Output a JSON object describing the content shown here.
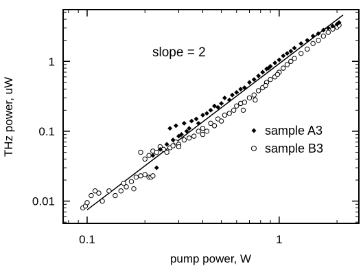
{
  "chart_data": {
    "type": "scatter",
    "xlabel": "pump power, W",
    "ylabel": "THz power, uW",
    "x_scale": "log",
    "y_scale": "log",
    "xlim": [
      0.075,
      2.6
    ],
    "ylim": [
      0.0048,
      5.5
    ],
    "x_ticks": [
      {
        "value": 0.1,
        "label": "0.1"
      },
      {
        "value": 1,
        "label": "1"
      }
    ],
    "y_ticks": [
      {
        "value": 0.01,
        "label": "0.01"
      },
      {
        "value": 0.1,
        "label": "0.1"
      },
      {
        "value": 1,
        "label": "1"
      }
    ],
    "annotation": "slope = 2",
    "legend_position": "right",
    "series": [
      {
        "name": "sample A3",
        "marker": "filled-diamond",
        "points": [
          [
            0.22,
            0.045
          ],
          [
            0.23,
            0.03
          ],
          [
            0.24,
            0.055
          ],
          [
            0.26,
            0.065
          ],
          [
            0.27,
            0.11
          ],
          [
            0.28,
            0.075
          ],
          [
            0.29,
            0.12
          ],
          [
            0.3,
            0.085
          ],
          [
            0.31,
            0.09
          ],
          [
            0.32,
            0.13
          ],
          [
            0.33,
            0.1
          ],
          [
            0.34,
            0.11
          ],
          [
            0.35,
            0.14
          ],
          [
            0.37,
            0.15
          ],
          [
            0.38,
            0.13
          ],
          [
            0.4,
            0.17
          ],
          [
            0.42,
            0.18
          ],
          [
            0.44,
            0.2
          ],
          [
            0.46,
            0.23
          ],
          [
            0.48,
            0.22
          ],
          [
            0.5,
            0.25
          ],
          [
            0.52,
            0.3
          ],
          [
            0.55,
            0.28
          ],
          [
            0.57,
            0.33
          ],
          [
            0.6,
            0.36
          ],
          [
            0.63,
            0.4
          ],
          [
            0.66,
            0.42
          ],
          [
            0.7,
            0.5
          ],
          [
            0.74,
            0.55
          ],
          [
            0.78,
            0.62
          ],
          [
            0.82,
            0.7
          ],
          [
            0.86,
            0.78
          ],
          [
            0.9,
            0.85
          ],
          [
            0.95,
            0.95
          ],
          [
            1.0,
            1.05
          ],
          [
            1.05,
            1.2
          ],
          [
            1.1,
            1.3
          ],
          [
            1.15,
            1.4
          ],
          [
            1.2,
            1.55
          ],
          [
            1.3,
            1.8
          ],
          [
            1.4,
            2.0
          ],
          [
            1.5,
            2.3
          ],
          [
            1.6,
            2.5
          ],
          [
            1.7,
            2.8
          ],
          [
            1.8,
            3.0
          ],
          [
            1.9,
            3.2
          ],
          [
            2.0,
            3.4
          ],
          [
            2.05,
            3.6
          ],
          [
            0.88,
            0.8
          ]
        ]
      },
      {
        "name": "sample B3",
        "marker": "open-circle",
        "points": [
          [
            0.095,
            0.008
          ],
          [
            0.098,
            0.0085
          ],
          [
            0.1,
            0.0095
          ],
          [
            0.105,
            0.012
          ],
          [
            0.11,
            0.014
          ],
          [
            0.115,
            0.013
          ],
          [
            0.12,
            0.01
          ],
          [
            0.13,
            0.014
          ],
          [
            0.14,
            0.012
          ],
          [
            0.15,
            0.014
          ],
          [
            0.155,
            0.018
          ],
          [
            0.16,
            0.016
          ],
          [
            0.17,
            0.019
          ],
          [
            0.175,
            0.015
          ],
          [
            0.18,
            0.022
          ],
          [
            0.19,
            0.023
          ],
          [
            0.2,
            0.024
          ],
          [
            0.21,
            0.022
          ],
          [
            0.215,
            0.022
          ],
          [
            0.22,
            0.023
          ],
          [
            0.19,
            0.05
          ],
          [
            0.2,
            0.04
          ],
          [
            0.21,
            0.045
          ],
          [
            0.22,
            0.052
          ],
          [
            0.23,
            0.05
          ],
          [
            0.24,
            0.06
          ],
          [
            0.25,
            0.055
          ],
          [
            0.26,
            0.05
          ],
          [
            0.27,
            0.058
          ],
          [
            0.28,
            0.062
          ],
          [
            0.29,
            0.07
          ],
          [
            0.3,
            0.065
          ],
          [
            0.32,
            0.075
          ],
          [
            0.34,
            0.08
          ],
          [
            0.36,
            0.085
          ],
          [
            0.38,
            0.1
          ],
          [
            0.4,
            0.11
          ],
          [
            0.42,
            0.1
          ],
          [
            0.44,
            0.13
          ],
          [
            0.46,
            0.12
          ],
          [
            0.48,
            0.15
          ],
          [
            0.5,
            0.14
          ],
          [
            0.52,
            0.17
          ],
          [
            0.55,
            0.18
          ],
          [
            0.58,
            0.2
          ],
          [
            0.6,
            0.23
          ],
          [
            0.63,
            0.25
          ],
          [
            0.66,
            0.26
          ],
          [
            0.7,
            0.3
          ],
          [
            0.74,
            0.33
          ],
          [
            0.78,
            0.38
          ],
          [
            0.82,
            0.42
          ],
          [
            0.86,
            0.5
          ],
          [
            0.9,
            0.55
          ],
          [
            0.95,
            0.6
          ],
          [
            1.0,
            0.7
          ],
          [
            1.05,
            0.8
          ],
          [
            1.1,
            0.9
          ],
          [
            1.15,
            1.0
          ],
          [
            1.2,
            1.1
          ],
          [
            1.3,
            1.3
          ],
          [
            1.4,
            1.5
          ],
          [
            1.5,
            1.8
          ],
          [
            1.6,
            2.0
          ],
          [
            1.7,
            2.3
          ],
          [
            1.8,
            2.6
          ],
          [
            1.9,
            2.9
          ],
          [
            2.0,
            3.1
          ],
          [
            2.05,
            3.3
          ],
          [
            0.65,
            0.2
          ],
          [
            0.75,
            0.28
          ],
          [
            0.85,
            0.45
          ],
          [
            0.4,
            0.09
          ],
          [
            0.3,
            0.06
          ],
          [
            0.98,
            0.65
          ]
        ]
      }
    ],
    "fit_line": {
      "slope": 2,
      "points": [
        [
          0.1,
          0.0075
        ],
        [
          2.15,
          4.6
        ]
      ]
    }
  }
}
